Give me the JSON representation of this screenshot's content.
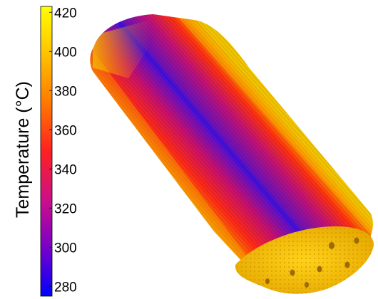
{
  "chart_data": {
    "type": "heatmap",
    "title": "",
    "colorbar": {
      "label": "Temperature (°C)",
      "ticks": [
        280,
        300,
        320,
        340,
        360,
        380,
        400,
        420
      ],
      "range": [
        275,
        423
      ],
      "colormap": [
        "#0000ff",
        "#7a00c8",
        "#cc0f8a",
        "#ff2020",
        "#ff7a00",
        "#ffc000",
        "#ffff00"
      ]
    },
    "object": {
      "shape": "cylinder",
      "end_cap_color": "#f2c500",
      "hottest_region": "ends and outer edges (~400–420 °C)",
      "coolest_region": "center streak (~300 °C)"
    }
  }
}
